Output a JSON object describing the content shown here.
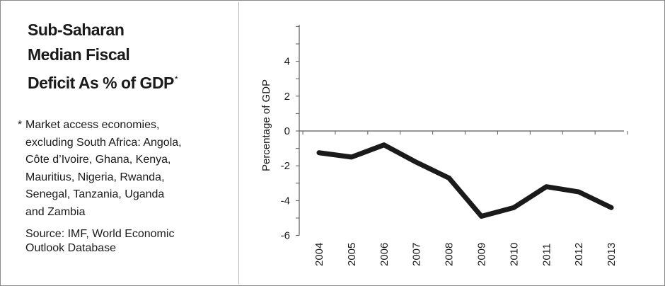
{
  "title_lines": [
    "Sub-Saharan",
    "Median Fiscal",
    "Deficit As % of GDP"
  ],
  "title_mark": "*",
  "footnote": {
    "marker": "*",
    "text": "Market access economies,\nexcluding South Africa: Angola,\nCôte d’Ivoire, Ghana, Kenya,\nMauritius, Nigeria, Rwanda,\nSenegal, Tanzania, Uganda\nand Zambia"
  },
  "source": "Source: IMF, World Economic\nOutlook Database",
  "chart_data": {
    "type": "line",
    "title": "Sub-Saharan Median Fiscal Deficit As % of GDP",
    "xlabel": "",
    "ylabel": "Percentage of GDP",
    "x": [
      "2004",
      "2005",
      "2006",
      "2007",
      "2008",
      "2009",
      "2010",
      "2011",
      "2012",
      "2013"
    ],
    "series": [
      {
        "values": [
          -1.25,
          -1.5,
          -0.8,
          -1.8,
          -2.7,
          -4.9,
          -4.4,
          -3.2,
          -3.5,
          -4.4
        ]
      }
    ],
    "ylim": [
      -6,
      6
    ],
    "yticks": [
      -6,
      -4,
      -2,
      0,
      2,
      4
    ],
    "line_color": "#1a1a1a",
    "grid": false
  }
}
